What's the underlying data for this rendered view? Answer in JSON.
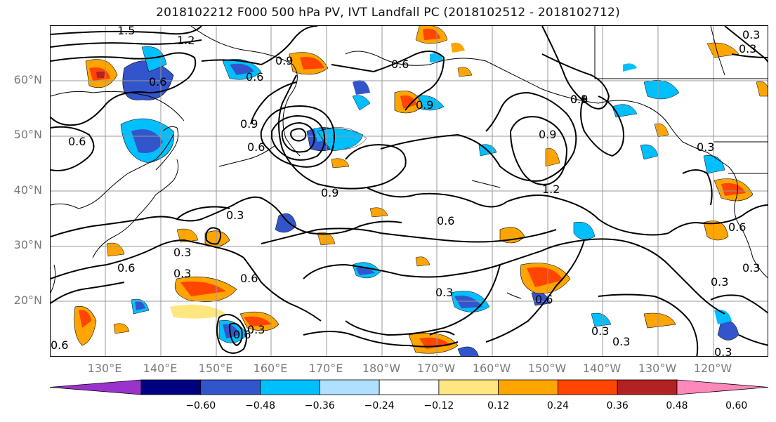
{
  "title": "2018102212 F000 500 hPa PV, IVT Landfall PC (2018102512 - 2018102712)",
  "lat_labels": [
    "60°N",
    "50°N",
    "40°N",
    "30°N",
    "20°N"
  ],
  "lon_labels": [
    "130°E",
    "140°E",
    "150°E",
    "160°E",
    "170°E",
    "180°W",
    "170°W",
    "160°W",
    "150°W",
    "140°W",
    "130°W",
    "120°W"
  ],
  "colorbar": {
    "colors": [
      "#9933cc",
      "#000080",
      "#3355cc",
      "#00bfff",
      "#b0e0ff",
      "#ffffff",
      "#ffe680",
      "#ffa500",
      "#ff4500",
      "#b22222",
      "#ff88bb"
    ],
    "tick_labels": [
      "−0.60",
      "−0.48",
      "−0.36",
      "−0.24",
      "−0.12",
      "0.12",
      "0.24",
      "0.36",
      "0.48",
      "0.60"
    ]
  },
  "contour_labels": [
    {
      "text": "1.5"
    },
    {
      "text": "1.2"
    },
    {
      "text": "0.9"
    },
    {
      "text": "0.6"
    },
    {
      "text": "0.6"
    },
    {
      "text": "0.9"
    },
    {
      "text": "0.6"
    },
    {
      "text": "0.9"
    },
    {
      "text": "0.9"
    },
    {
      "text": "0.6"
    },
    {
      "text": "0.9"
    },
    {
      "text": "0.3"
    },
    {
      "text": "0.6"
    },
    {
      "text": "0.3"
    },
    {
      "text": "0.6"
    },
    {
      "text": "0.3"
    },
    {
      "text": "0.9"
    },
    {
      "text": "1.2"
    },
    {
      "text": "0.3"
    },
    {
      "text": "0.6"
    },
    {
      "text": "0.3"
    },
    {
      "text": "0.3"
    },
    {
      "text": "0.6"
    },
    {
      "text": "0.3"
    },
    {
      "text": "0.6"
    },
    {
      "text": "0.3"
    },
    {
      "text": "0.3"
    },
    {
      "text": "0.3"
    },
    {
      "text": "0.6"
    },
    {
      "text": "0.3"
    },
    {
      "text": "0.3"
    },
    {
      "text": "0.3"
    },
    {
      "text": "0.6"
    },
    {
      "text": "0.3"
    },
    {
      "text": "0.6"
    }
  ]
}
